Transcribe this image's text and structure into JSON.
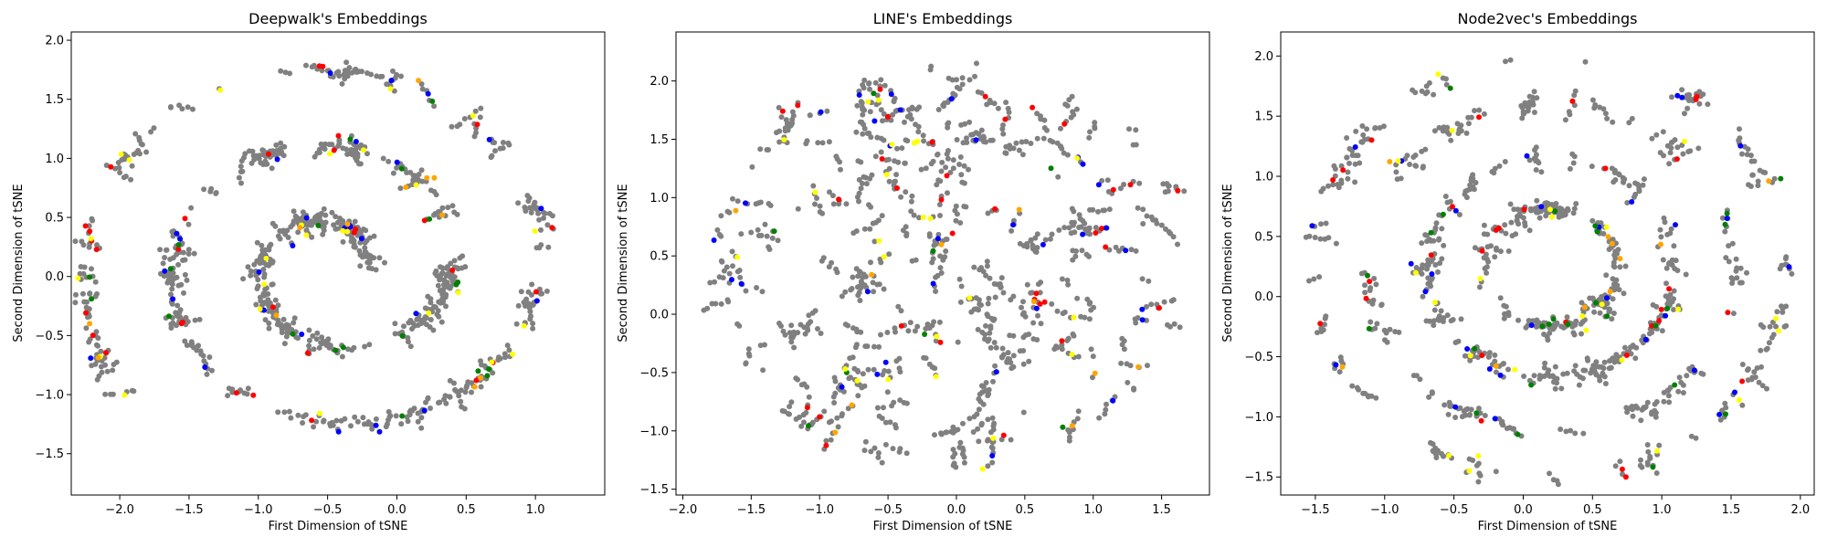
{
  "chart_data": [
    {
      "type": "scatter",
      "title": "Deepwalk's Embeddings",
      "xlabel": "First Dimension of tSNE",
      "ylabel": "Second Dimension of tSNE",
      "xlim": [
        -2.35,
        1.5
      ],
      "ylim": [
        -1.85,
        2.07
      ],
      "xticks": [
        -2.0,
        -1.5,
        -1.0,
        -0.5,
        0.0,
        0.5,
        1.0
      ],
      "yticks": [
        -1.5,
        -1.0,
        -0.5,
        0.0,
        0.5,
        1.0,
        1.5,
        2.0
      ],
      "xtick_labels": [
        "−2.0",
        "−1.5",
        "−1.0",
        "−0.5",
        "0.0",
        "0.5",
        "1.0"
      ],
      "ytick_labels": [
        "−1.5",
        "−1.0",
        "−0.5",
        "0.0",
        "0.5",
        "1.0",
        "1.5",
        "2.0"
      ],
      "grid": false,
      "layout": {
        "shape": "spiral",
        "radius_x": 1.75,
        "radius_y": 1.75,
        "center": [
          -0.45,
          0.1
        ]
      },
      "series": [
        {
          "color": "#808080",
          "count": 950
        },
        {
          "color": "#ff0000",
          "count": 32
        },
        {
          "color": "#0000ff",
          "count": 30
        },
        {
          "color": "#008000",
          "count": 20
        },
        {
          "color": "#ffff00",
          "count": 26
        },
        {
          "color": "#ffa500",
          "count": 12
        }
      ]
    },
    {
      "type": "scatter",
      "title": "LINE's Embeddings",
      "xlabel": "First Dimension of tSNE",
      "ylabel": "Second Dimension of tSNE",
      "xlim": [
        -2.05,
        1.85
      ],
      "ylim": [
        -1.55,
        2.42
      ],
      "xticks": [
        -2.0,
        -1.5,
        -1.0,
        -0.5,
        0.0,
        0.5,
        1.0,
        1.5
      ],
      "yticks": [
        -1.5,
        -1.0,
        -0.5,
        0.0,
        0.5,
        1.0,
        1.5,
        2.0
      ],
      "xtick_labels": [
        "−2.0",
        "−1.5",
        "−1.0",
        "−0.5",
        "0.0",
        "0.5",
        "1.0",
        "1.5"
      ],
      "ytick_labels": [
        "−1.5",
        "−1.0",
        "−0.5",
        "0.0",
        "0.5",
        "1.0",
        "1.5",
        "2.0"
      ],
      "grid": false,
      "layout": {
        "shape": "disc",
        "radius_x": 1.75,
        "radius_y": 1.75,
        "center": [
          -0.05,
          0.45
        ]
      },
      "series": [
        {
          "color": "#808080",
          "count": 950
        },
        {
          "color": "#ff0000",
          "count": 34
        },
        {
          "color": "#0000ff",
          "count": 32
        },
        {
          "color": "#008000",
          "count": 8
        },
        {
          "color": "#ffff00",
          "count": 24
        },
        {
          "color": "#ffa500",
          "count": 10
        }
      ]
    },
    {
      "type": "scatter",
      "title": "Node2vec's Embeddings",
      "xlabel": "First Dimension of tSNE",
      "ylabel": "Second Dimension of tSNE",
      "xlim": [
        -1.75,
        2.1
      ],
      "ylim": [
        -1.65,
        2.2
      ],
      "xticks": [
        -1.5,
        -1.0,
        -0.5,
        0.0,
        0.5,
        1.0,
        1.5,
        2.0
      ],
      "yticks": [
        -1.5,
        -1.0,
        -0.5,
        0.0,
        0.5,
        1.0,
        1.5,
        2.0
      ],
      "xtick_labels": [
        "−1.5",
        "−1.0",
        "−0.5",
        "0.0",
        "0.5",
        "1.0",
        "1.5",
        "2.0"
      ],
      "ytick_labels": [
        "−1.5",
        "−1.0",
        "−0.5",
        "0.0",
        "0.5",
        "1.0",
        "1.5",
        "2.0"
      ],
      "grid": false,
      "layout": {
        "shape": "rings",
        "radius_x": 1.7,
        "radius_y": 1.75,
        "center": [
          0.2,
          0.25
        ]
      },
      "series": [
        {
          "color": "#808080",
          "count": 950
        },
        {
          "color": "#ff0000",
          "count": 30
        },
        {
          "color": "#0000ff",
          "count": 30
        },
        {
          "color": "#008000",
          "count": 26
        },
        {
          "color": "#ffff00",
          "count": 24
        },
        {
          "color": "#ffa500",
          "count": 10
        }
      ]
    }
  ]
}
